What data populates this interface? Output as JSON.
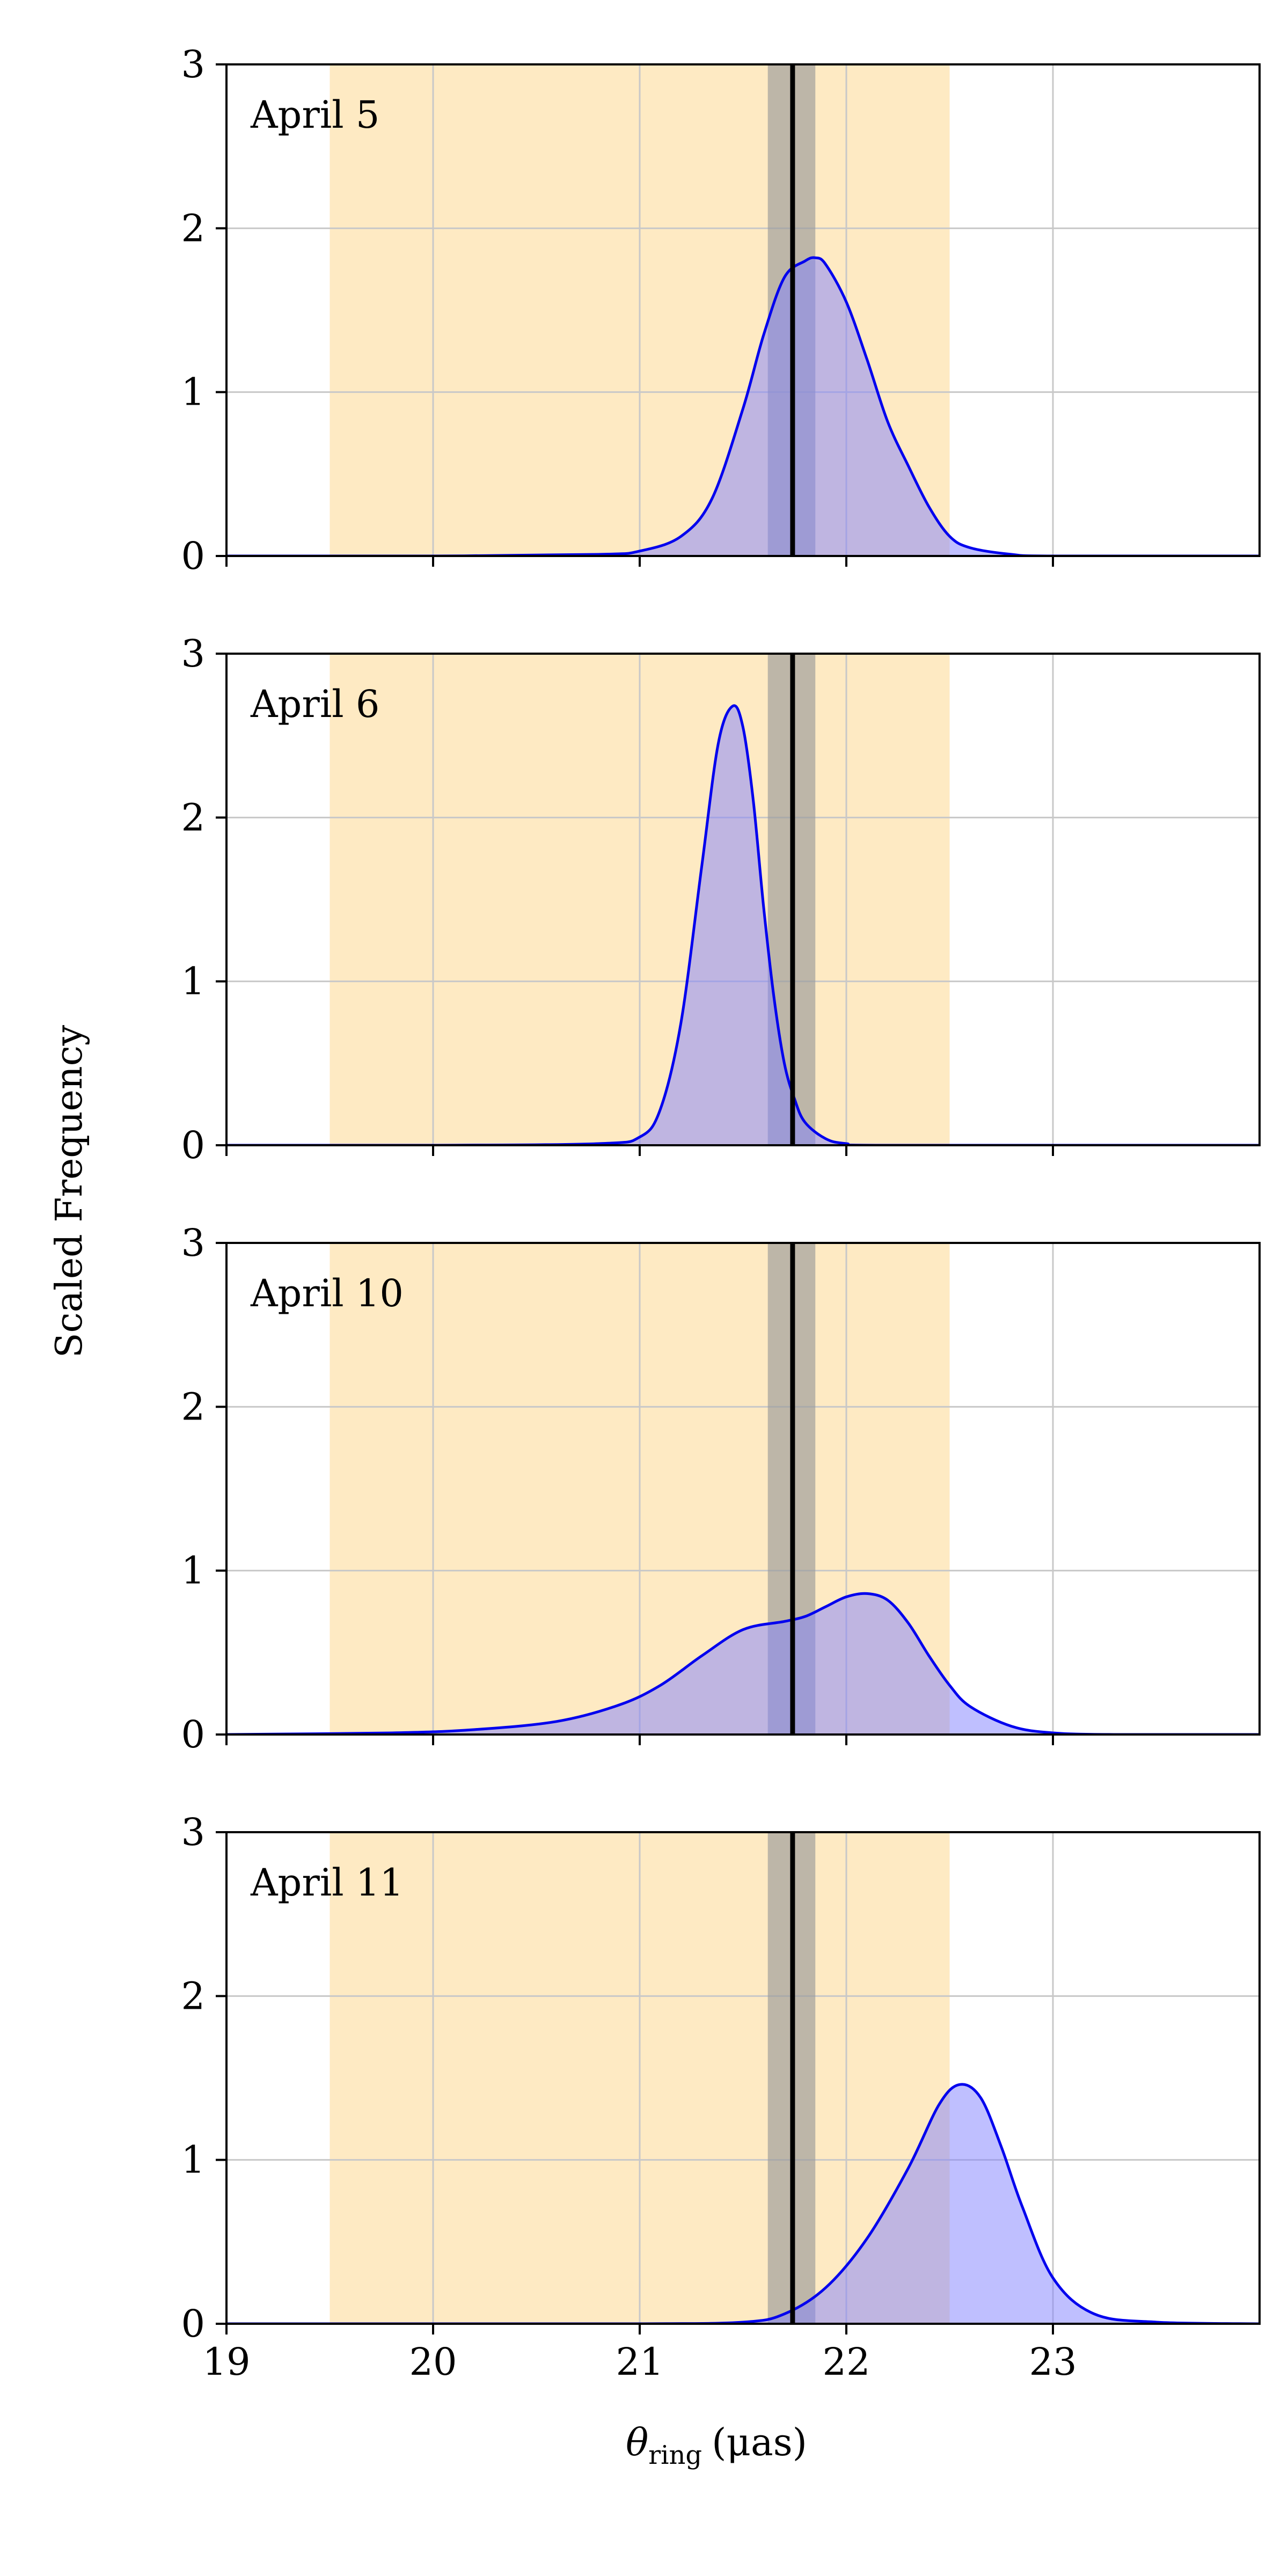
{
  "ylabel": "Scaled Frequency",
  "xlabel_symbol": "θ",
  "xlabel_subscript": "ring",
  "xlabel_unit": "(μas)",
  "colors": {
    "curve": "#0000ee",
    "fill": "#8080ff",
    "band": "#fdd587",
    "gray_band": "#9a9a9a",
    "line": "#000000",
    "grid": "#c8c8c8"
  },
  "chart_data": [
    {
      "type": "area",
      "label": "April 5",
      "xlim": [
        19,
        24
      ],
      "ylim": [
        0,
        3
      ],
      "xticks": [
        19,
        20,
        21,
        22,
        23
      ],
      "yticks": [
        0,
        1,
        2,
        3
      ],
      "grid": true,
      "shaded_band": [
        19.5,
        22.5
      ],
      "gray_band": [
        21.62,
        21.85
      ],
      "vertical_line": 21.74,
      "series": [
        {
          "x": [
            19.0,
            20.0,
            20.8,
            21.0,
            21.2,
            21.35,
            21.5,
            21.6,
            21.7,
            21.8,
            21.85,
            21.9,
            22.0,
            22.1,
            22.2,
            22.3,
            22.4,
            22.5,
            22.6,
            22.8,
            23.0,
            24.0
          ],
          "y": [
            0,
            0,
            0.01,
            0.03,
            0.12,
            0.35,
            0.9,
            1.35,
            1.7,
            1.8,
            1.82,
            1.78,
            1.55,
            1.2,
            0.82,
            0.55,
            0.3,
            0.12,
            0.05,
            0.01,
            0,
            0
          ]
        }
      ]
    },
    {
      "type": "area",
      "label": "April 6",
      "xlim": [
        19,
        24
      ],
      "ylim": [
        0,
        3
      ],
      "xticks": [
        19,
        20,
        21,
        22,
        23
      ],
      "yticks": [
        0,
        1,
        2,
        3
      ],
      "grid": true,
      "shaded_band": [
        19.5,
        22.5
      ],
      "gray_band": [
        21.62,
        21.85
      ],
      "vertical_line": 21.74,
      "series": [
        {
          "x": [
            19.0,
            20.0,
            20.8,
            21.0,
            21.1,
            21.2,
            21.3,
            21.38,
            21.45,
            21.5,
            21.55,
            21.6,
            21.65,
            21.7,
            21.75,
            21.8,
            21.9,
            22.0,
            22.2,
            24.0
          ],
          "y": [
            0,
            0,
            0.01,
            0.05,
            0.22,
            0.75,
            1.7,
            2.45,
            2.68,
            2.55,
            2.1,
            1.45,
            0.9,
            0.5,
            0.28,
            0.14,
            0.04,
            0.01,
            0,
            0
          ]
        }
      ]
    },
    {
      "type": "area",
      "label": "April 10",
      "xlim": [
        19,
        24
      ],
      "ylim": [
        0,
        3
      ],
      "xticks": [
        19,
        20,
        21,
        22,
        23
      ],
      "yticks": [
        0,
        1,
        2,
        3
      ],
      "grid": true,
      "shaded_band": [
        19.5,
        22.5
      ],
      "gray_band": [
        21.62,
        21.85
      ],
      "vertical_line": 21.74,
      "series": [
        {
          "x": [
            19.0,
            19.8,
            20.2,
            20.6,
            20.9,
            21.1,
            21.3,
            21.5,
            21.7,
            21.8,
            21.9,
            22.0,
            22.1,
            22.2,
            22.3,
            22.4,
            22.5,
            22.6,
            22.8,
            23.0,
            23.3,
            24.0
          ],
          "y": [
            0,
            0.01,
            0.03,
            0.08,
            0.18,
            0.3,
            0.48,
            0.64,
            0.69,
            0.72,
            0.78,
            0.84,
            0.86,
            0.82,
            0.68,
            0.48,
            0.3,
            0.17,
            0.05,
            0.01,
            0,
            0
          ]
        }
      ]
    },
    {
      "type": "area",
      "label": "April 11",
      "xlim": [
        19,
        24
      ],
      "ylim": [
        0,
        3
      ],
      "xticks": [
        19,
        20,
        21,
        22,
        23
      ],
      "yticks": [
        0,
        1,
        2,
        3
      ],
      "grid": true,
      "shaded_band": [
        19.5,
        22.5
      ],
      "gray_band": [
        21.62,
        21.85
      ],
      "vertical_line": 21.74,
      "series": [
        {
          "x": [
            19.0,
            20.0,
            21.0,
            21.5,
            21.7,
            21.9,
            22.1,
            22.3,
            22.45,
            22.55,
            22.65,
            22.75,
            22.85,
            23.0,
            23.2,
            23.5,
            24.0
          ],
          "y": [
            0,
            0,
            0,
            0.01,
            0.06,
            0.22,
            0.52,
            0.95,
            1.34,
            1.46,
            1.38,
            1.08,
            0.72,
            0.28,
            0.06,
            0.01,
            0
          ]
        }
      ]
    }
  ]
}
